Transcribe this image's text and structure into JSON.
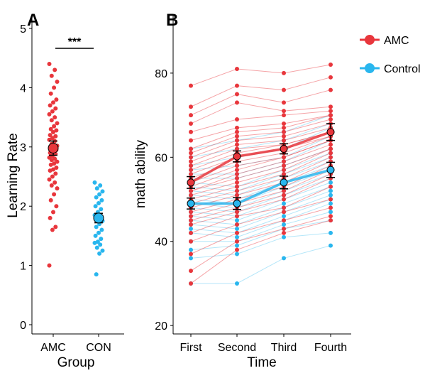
{
  "colors": {
    "amc": "#e8363c",
    "control": "#29b6ee",
    "axis": "#000000"
  },
  "chart_data": [
    {
      "panel_label": "A",
      "type": "scatter",
      "xlabel": "Group",
      "ylabel": "Learning Rate",
      "categories": [
        "AMC",
        "CON"
      ],
      "ylim": [
        0,
        5
      ],
      "yticks": [
        0,
        1,
        2,
        3,
        4,
        5
      ],
      "significance": "***",
      "grid": false,
      "series": [
        {
          "category": "AMC",
          "mean": 2.98,
          "se": 0.12,
          "points": [
            4.4,
            4.3,
            4.2,
            4.1,
            4.0,
            3.9,
            3.8,
            3.75,
            3.7,
            3.65,
            3.6,
            3.55,
            3.5,
            3.45,
            3.4,
            3.35,
            3.3,
            3.28,
            3.25,
            3.2,
            3.18,
            3.15,
            3.12,
            3.1,
            3.05,
            3.02,
            3.0,
            2.98,
            2.95,
            2.92,
            2.9,
            2.88,
            2.85,
            2.82,
            2.8,
            2.78,
            2.75,
            2.72,
            2.7,
            2.65,
            2.62,
            2.6,
            2.55,
            2.5,
            2.45,
            2.4,
            2.35,
            2.3,
            2.2,
            2.1,
            2.0,
            1.9,
            1.8,
            1.65,
            1.6,
            1.0
          ]
        },
        {
          "category": "CON",
          "mean": 1.8,
          "se": 0.08,
          "points": [
            2.4,
            2.35,
            2.3,
            2.25,
            2.2,
            2.15,
            2.1,
            2.05,
            2.0,
            1.95,
            1.9,
            1.85,
            1.82,
            1.78,
            1.75,
            1.7,
            1.65,
            1.6,
            1.55,
            1.5,
            1.45,
            1.4,
            1.38,
            1.35,
            1.3,
            1.25,
            1.2,
            0.85
          ]
        }
      ]
    },
    {
      "panel_label": "B",
      "type": "line",
      "xlabel": "Time",
      "ylabel": "math ability",
      "categories": [
        "First",
        "Second",
        "Third",
        "Fourth"
      ],
      "ylim": [
        18,
        94
      ],
      "yticks": [
        20,
        40,
        60,
        80
      ],
      "grid": false,
      "legend_position": "top-right",
      "series": [
        {
          "name": "AMC",
          "means": [
            54,
            60.2,
            62,
            66
          ],
          "se": [
            1.4,
            1.3,
            1.2,
            2.0
          ],
          "subjects": [
            [
              77,
              81,
              80,
              82
            ],
            [
              72,
              77,
              76,
              79
            ],
            [
              70,
              75,
              73,
              76
            ],
            [
              68,
              73,
              71,
              72
            ],
            [
              66,
              69,
              70,
              71
            ],
            [
              64,
              67,
              68,
              70
            ],
            [
              62,
              66,
              67,
              70
            ],
            [
              61,
              65,
              66,
              69
            ],
            [
              60,
              64,
              65,
              68
            ],
            [
              59,
              63,
              64,
              67
            ],
            [
              58,
              62,
              63,
              66
            ],
            [
              57,
              61,
              63,
              66
            ],
            [
              56,
              60,
              62,
              65
            ],
            [
              55,
              59,
              61,
              65
            ],
            [
              54,
              58,
              60,
              64
            ],
            [
              53,
              57,
              60,
              64
            ],
            [
              52,
              56,
              59,
              63
            ],
            [
              52,
              55,
              58,
              62
            ],
            [
              51,
              54,
              57,
              62
            ],
            [
              50,
              53,
              56,
              61
            ],
            [
              49,
              52,
              55,
              60
            ],
            [
              48,
              51,
              54,
              59
            ],
            [
              47,
              50,
              53,
              58
            ],
            [
              46,
              49,
              52,
              57
            ],
            [
              45,
              48,
              51,
              56
            ],
            [
              44,
              47,
              50,
              55
            ],
            [
              42,
              46,
              48,
              53
            ],
            [
              40,
              44,
              47,
              50
            ],
            [
              37,
              42,
              45,
              48
            ],
            [
              33,
              40,
              43,
              46
            ],
            [
              30,
              38,
              42,
              45
            ]
          ]
        },
        {
          "name": "Control",
          "means": [
            49,
            49,
            54,
            57
          ],
          "se": [
            1.3,
            1.4,
            1.5,
            1.8
          ],
          "subjects": [
            [
              62,
              64,
              66,
              70
            ],
            [
              60,
              62,
              64,
              68
            ],
            [
              58,
              60,
              62,
              67
            ],
            [
              57,
              58,
              60,
              65
            ],
            [
              56,
              56,
              59,
              64
            ],
            [
              55,
              55,
              58,
              62
            ],
            [
              54,
              53,
              57,
              61
            ],
            [
              53,
              52,
              56,
              60
            ],
            [
              52,
              51,
              55,
              59
            ],
            [
              51,
              50,
              54,
              58
            ],
            [
              50,
              49,
              53,
              57
            ],
            [
              49,
              48,
              52,
              56
            ],
            [
              48,
              47,
              51,
              55
            ],
            [
              47,
              46,
              50,
              54
            ],
            [
              46,
              45,
              49,
              53
            ],
            [
              45,
              44,
              48,
              52
            ],
            [
              44,
              43,
              47,
              51
            ],
            [
              43,
              42,
              46,
              50
            ],
            [
              42,
              41,
              45,
              49
            ],
            [
              40,
              40,
              44,
              47
            ],
            [
              38,
              39,
              43,
              45
            ],
            [
              36,
              37,
              41,
              42
            ],
            [
              30,
              30,
              36,
              39
            ]
          ]
        }
      ]
    }
  ]
}
